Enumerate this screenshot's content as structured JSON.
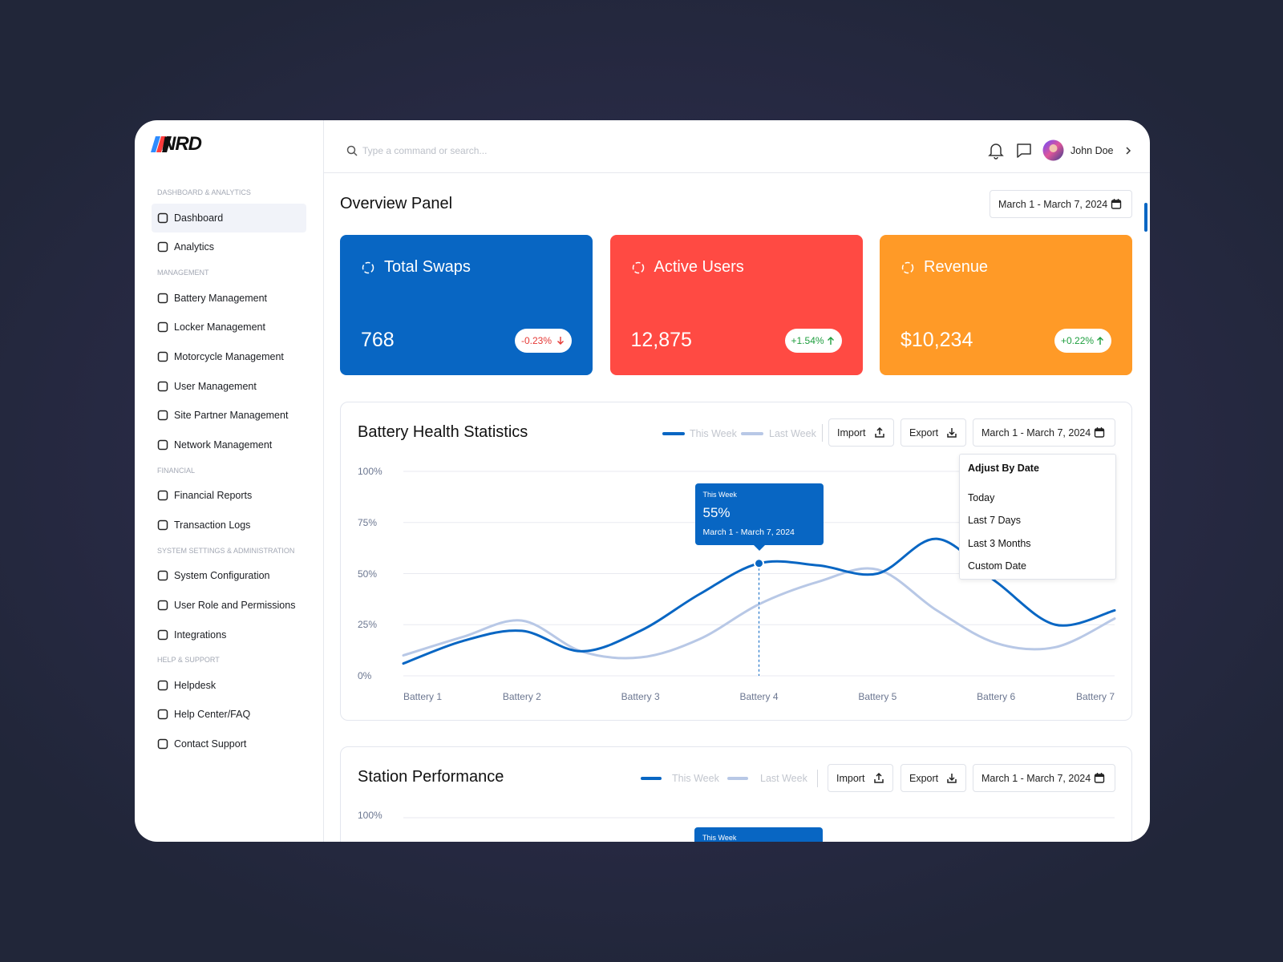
{
  "logo": "NRD",
  "sidebar": {
    "sections": [
      {
        "title": "DASHBOARD & ANALYTICS",
        "items": [
          "Dashboard",
          "Analytics"
        ]
      },
      {
        "title": "MANAGEMENT",
        "items": [
          "Battery Management",
          "Locker Management",
          "Motorcycle Management",
          "User Management",
          "Site Partner Management",
          "Network Management"
        ]
      },
      {
        "title": "FINANCIAL",
        "items": [
          "Financial Reports",
          "Transaction Logs"
        ]
      },
      {
        "title": "SYSTEM SETTINGS & ADMINISTRATION",
        "items": [
          "System Configuration",
          "User Role and Permissions",
          "Integrations"
        ]
      },
      {
        "title": "HELP & SUPPORT",
        "items": [
          "Helpdesk",
          "Help Center/FAQ",
          "Contact Support"
        ]
      }
    ]
  },
  "topbar": {
    "search_placeholder": "Type a command or search...",
    "user": "John Doe"
  },
  "overview": {
    "title": "Overview Panel",
    "date_range": "March 1 - March 7, 2024",
    "cards": [
      {
        "title": "Total Swaps",
        "value": "768",
        "change": "-0.23%",
        "color": "#0866c3"
      },
      {
        "title": "Active Users",
        "value": "12,875",
        "change": "+1.54%",
        "color": "#ff4a43"
      },
      {
        "title": "Revenue",
        "value": "$10,234",
        "change": "+0.22%",
        "color": "#ff9a27"
      }
    ]
  },
  "buttons": {
    "import": "Import",
    "export": "Export"
  },
  "date_menu": {
    "title": "Adjust By Date",
    "options": [
      "Today",
      "Last 7 Days",
      "Last 3 Months",
      "Custom Date"
    ]
  },
  "chart_data": {
    "type": "line",
    "title": "Battery Health Statistics",
    "categories": [
      "Battery 1",
      null,
      "Battery 2",
      null,
      "Battery 3",
      null,
      "Battery 4",
      null,
      "Battery 5",
      null,
      "Battery 6",
      null,
      "Battery 7"
    ],
    "series": [
      {
        "name": "This Week",
        "color": "#0866c3",
        "values": [
          6,
          17,
          22,
          12,
          22,
          40,
          55,
          54,
          50,
          67,
          46,
          25,
          32
        ],
        "value_labels": [
          null,
          null,
          null,
          null,
          null,
          null,
          "55%",
          null,
          null,
          null,
          null,
          null,
          null
        ]
      },
      {
        "name": "Last Week",
        "color": "#b8c8e6",
        "values": [
          10,
          19,
          27,
          12,
          9,
          18,
          35,
          46,
          52,
          32,
          16,
          14,
          28
        ]
      }
    ],
    "ylim": [
      0,
      100
    ],
    "yticks": [
      {
        "value": 0,
        "label": "0%"
      },
      {
        "value": 25,
        "label": "25%"
      },
      {
        "value": 50,
        "label": "50%"
      },
      {
        "value": 75,
        "label": "75%"
      },
      {
        "value": 100,
        "label": "100%"
      }
    ],
    "grid": true
  },
  "station_performance": {
    "title": "Station Performance",
    "legend": [
      "This Week",
      "Last Week"
    ],
    "top_tick": "100%",
    "tooltip_label": "This Week"
  }
}
